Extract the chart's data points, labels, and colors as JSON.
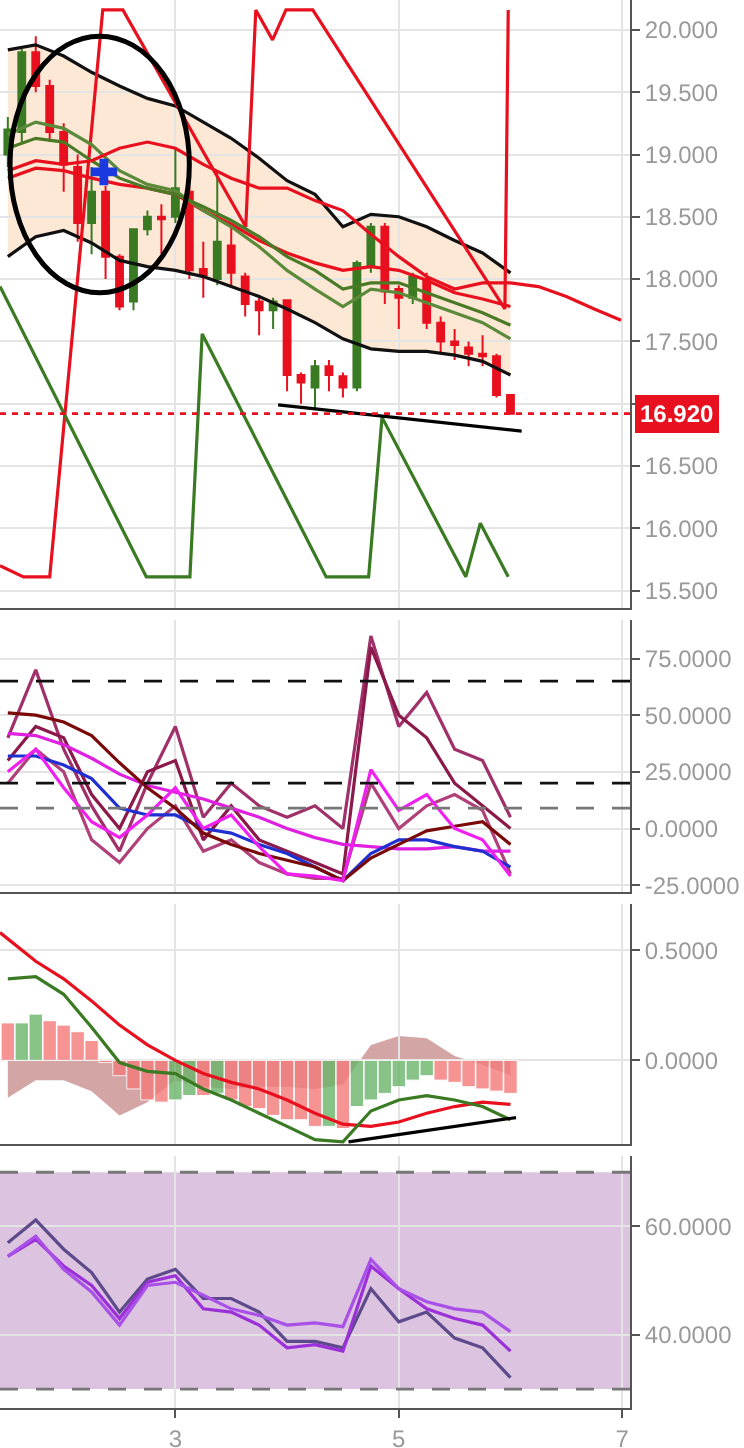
{
  "chart_data": [
    {
      "type": "candlestick",
      "x": [
        1.5,
        1.625,
        1.75,
        1.875,
        2.0,
        2.125,
        2.25,
        2.375,
        2.5,
        2.625,
        2.75,
        2.875,
        3.0,
        3.125,
        3.25,
        3.375,
        3.5,
        3.625,
        3.75,
        3.875,
        4.0,
        4.125,
        4.25,
        4.375,
        4.5,
        4.625,
        4.75,
        4.875,
        5.0,
        5.125,
        5.25,
        5.375,
        5.5,
        5.625,
        5.75,
        5.875,
        6.0
      ],
      "ohlc": [
        [
          19.0,
          19.3,
          18.9,
          19.2
        ],
        [
          19.18,
          19.85,
          19.1,
          19.82
        ],
        [
          19.82,
          19.95,
          19.5,
          19.55
        ],
        [
          19.55,
          19.6,
          19.1,
          19.18
        ],
        [
          19.18,
          19.25,
          18.7,
          18.92
        ],
        [
          18.9,
          19.0,
          18.3,
          18.45
        ],
        [
          18.45,
          18.9,
          18.2,
          18.7
        ],
        [
          18.7,
          18.75,
          18.0,
          18.18
        ],
        [
          18.18,
          18.2,
          17.75,
          17.78
        ],
        [
          17.82,
          18.4,
          17.75,
          18.4
        ],
        [
          18.4,
          18.55,
          18.35,
          18.5
        ],
        [
          18.5,
          18.6,
          18.2,
          18.48
        ],
        [
          18.5,
          19.05,
          18.45,
          18.73
        ],
        [
          18.7,
          18.75,
          18.0,
          18.07
        ],
        [
          18.08,
          18.3,
          17.85,
          18.03
        ],
        [
          18.0,
          18.85,
          17.95,
          18.3
        ],
        [
          18.27,
          18.45,
          17.95,
          18.05
        ],
        [
          18.02,
          18.05,
          17.7,
          17.8
        ],
        [
          17.82,
          17.85,
          17.55,
          17.75
        ],
        [
          17.75,
          17.85,
          17.6,
          17.82
        ],
        [
          17.83,
          17.83,
          17.1,
          17.23
        ],
        [
          17.23,
          17.25,
          17.0,
          17.17
        ],
        [
          17.13,
          17.35,
          16.95,
          17.3
        ],
        [
          17.3,
          17.35,
          17.1,
          17.23
        ],
        [
          17.22,
          17.25,
          17.05,
          17.13
        ],
        [
          17.13,
          18.15,
          17.1,
          18.13
        ],
        [
          18.1,
          18.45,
          18.05,
          18.42
        ],
        [
          18.42,
          18.45,
          17.8,
          17.9
        ],
        [
          17.92,
          17.95,
          17.6,
          17.85
        ],
        [
          17.85,
          18.05,
          17.8,
          18.02
        ],
        [
          18.0,
          18.05,
          17.6,
          17.65
        ],
        [
          17.65,
          17.7,
          17.4,
          17.5
        ],
        [
          17.5,
          17.6,
          17.35,
          17.47
        ],
        [
          17.45,
          17.5,
          17.3,
          17.4
        ],
        [
          17.4,
          17.55,
          17.3,
          17.38
        ],
        [
          17.38,
          17.4,
          17.05,
          17.07
        ],
        [
          17.07,
          17.07,
          16.92,
          16.92
        ]
      ],
      "series": [
        {
          "type": "line",
          "color": "#111111",
          "x": [
            1.5,
            1.75,
            2.0,
            2.25,
            2.5,
            2.75,
            3.0,
            3.25,
            3.5,
            3.75,
            4.0,
            4.25,
            4.5,
            4.75,
            5.0,
            5.25,
            5.5,
            5.75,
            6.0
          ],
          "values": [
            19.84,
            19.88,
            19.79,
            19.66,
            19.55,
            19.45,
            19.39,
            19.26,
            19.13,
            18.97,
            18.79,
            18.68,
            18.42,
            18.52,
            18.5,
            18.42,
            18.31,
            18.21,
            18.05
          ]
        },
        {
          "type": "line",
          "color": "#111111",
          "x": [
            1.5,
            1.75,
            2.0,
            2.25,
            2.5,
            2.75,
            3.0,
            3.25,
            3.5,
            3.75,
            4.0,
            4.25,
            4.5,
            4.75,
            5.0,
            5.25,
            5.5,
            5.75,
            6.0
          ],
          "values": [
            18.18,
            18.34,
            18.39,
            18.29,
            18.15,
            18.1,
            18.07,
            18.02,
            17.94,
            17.86,
            17.76,
            17.65,
            17.52,
            17.44,
            17.42,
            17.42,
            17.39,
            17.34,
            17.23
          ]
        },
        {
          "type": "line",
          "color": "#e8101e",
          "x": [
            1.43,
            1.64,
            1.875,
            2.35,
            2.53,
            3.63,
            3.72,
            3.87,
            3.99,
            4.23,
            5.95,
            5.98
          ],
          "values": [
            15.7,
            15.61,
            15.61,
            20.16,
            20.16,
            18.42,
            20.16,
            19.92,
            20.16,
            20.16,
            17.76,
            20.16
          ]
        },
        {
          "type": "line",
          "color": "#3a7a23",
          "x": [
            1.43,
            2.74,
            3.13,
            3.24,
            4.35,
            4.73,
            4.85,
            5.6,
            5.73,
            5.98
          ],
          "values": [
            17.94,
            15.61,
            15.61,
            17.56,
            15.61,
            15.61,
            16.89,
            15.61,
            16.04,
            15.61
          ]
        },
        {
          "type": "line",
          "color": "#e8101e",
          "x": [
            1.5,
            1.75,
            2.0,
            2.25,
            2.5,
            2.75,
            3.0,
            3.25,
            3.5,
            3.75,
            4.0,
            4.25,
            4.5,
            4.75,
            5.0,
            5.25,
            5.5,
            5.75,
            6.0
          ],
          "values": [
            18.81,
            18.89,
            18.87,
            18.81,
            18.76,
            18.73,
            18.68,
            18.55,
            18.44,
            18.31,
            18.21,
            18.13,
            18.07,
            18.1,
            18.07,
            17.99,
            17.89,
            17.84,
            17.78
          ]
        },
        {
          "type": "line",
          "color": "#5a8a3a",
          "x": [
            1.5,
            1.75,
            2.0,
            2.25,
            2.5,
            2.75,
            3.0,
            3.25,
            3.5,
            3.75,
            4.0,
            4.25,
            4.5,
            4.75,
            5.0,
            5.25,
            5.5,
            5.75,
            6.0
          ],
          "values": [
            19.16,
            19.26,
            19.21,
            19.08,
            18.87,
            18.76,
            18.71,
            18.55,
            18.42,
            18.26,
            18.07,
            17.92,
            17.78,
            17.92,
            17.89,
            17.81,
            17.73,
            17.65,
            17.52
          ]
        },
        {
          "type": "line",
          "color": "#4a7a25",
          "x": [
            1.5,
            1.75,
            2.0,
            2.25,
            2.5,
            2.75,
            3.0,
            3.25,
            3.5,
            3.75,
            4.0,
            4.25,
            4.5,
            4.75,
            5.0,
            5.25,
            5.5,
            5.75,
            6.0
          ],
          "values": [
            19.05,
            19.13,
            19.1,
            18.95,
            18.81,
            18.73,
            18.68,
            18.58,
            18.47,
            18.34,
            18.18,
            18.07,
            17.92,
            17.97,
            17.97,
            17.89,
            17.81,
            17.73,
            17.63
          ],
          "lower": [
            18.18,
            18.34,
            18.39,
            18.29,
            18.15,
            18.1,
            18.07,
            18.02,
            17.94,
            17.86,
            17.76,
            17.65,
            17.52,
            17.44,
            17.42,
            17.42,
            17.39,
            17.34,
            17.23
          ],
          "upper": [
            19.84,
            19.88,
            19.79,
            19.66,
            19.55,
            19.45,
            19.39,
            19.26,
            19.13,
            18.97,
            18.79,
            18.68,
            18.42,
            18.52,
            18.5,
            18.42,
            18.31,
            18.21,
            18.05
          ]
        },
        {
          "type": "line",
          "color": "#e8101e",
          "x": [
            1.5,
            1.75,
            2.0,
            2.25,
            2.5,
            2.75,
            3.0,
            3.25,
            3.5,
            3.75,
            4.0,
            4.25,
            4.5,
            4.75,
            5.0,
            5.25,
            5.5,
            5.75,
            6.0,
            6.25,
            6.5,
            6.75,
            6.99
          ],
          "values": [
            18.87,
            18.95,
            18.92,
            18.95,
            19.05,
            19.1,
            19.05,
            18.92,
            18.81,
            18.73,
            18.73,
            18.63,
            18.55,
            18.36,
            18.18,
            18.02,
            17.92,
            17.97,
            17.97,
            17.94,
            17.86,
            17.76,
            17.67
          ]
        },
        {
          "type": "line",
          "color": "#000000",
          "x": [
            3.92,
            6.1
          ],
          "values": [
            16.99,
            16.78
          ]
        },
        {
          "type": "scatter",
          "marker": "cross",
          "color": "#1a3ae0",
          "x": [
            2.36
          ],
          "values": [
            18.86
          ]
        }
      ],
      "xlim": [
        1.43,
        7.07
      ],
      "xticks": [
        3,
        5,
        7
      ],
      "ylim": [
        15.36,
        20.24
      ],
      "yticks": [
        {
          "value": 15.5,
          "label": "15.500"
        },
        {
          "value": 16,
          "label": "16.000"
        },
        {
          "value": 16.5,
          "label": "16.500"
        },
        {
          "value": 17,
          "label": null
        },
        {
          "value": 17.5,
          "label": "17.500"
        },
        {
          "value": 18,
          "label": "18.000"
        },
        {
          "value": 18.5,
          "label": "18.500"
        },
        {
          "value": 19,
          "label": "19.000"
        },
        {
          "value": 19.5,
          "label": "19.500"
        },
        {
          "value": 20,
          "label": "20.000"
        }
      ],
      "ref_lines": [
        {
          "axis": "y",
          "value": 16.92,
          "label": "16.920",
          "color": "#e8101e",
          "line_style": "dotted"
        }
      ],
      "grid": true,
      "tick_labels": "y"
    },
    {
      "type": "line",
      "x": [
        1.5,
        1.75,
        2.0,
        2.25,
        2.5,
        2.75,
        3.0,
        3.25,
        3.5,
        3.75,
        4.0,
        4.25,
        4.5,
        4.75,
        5.0,
        5.25,
        5.5,
        5.75,
        6.0
      ],
      "series": [
        {
          "color": "#a0306a",
          "values": [
            40,
            70,
            35,
            10,
            -10,
            20,
            45,
            5,
            20,
            10,
            5,
            10,
            0,
            85,
            45,
            60,
            35,
            30,
            5
          ]
        },
        {
          "color": "#8b1a4a",
          "values": [
            30,
            45,
            40,
            15,
            0,
            25,
            30,
            -5,
            10,
            -5,
            -10,
            -15,
            -20,
            80,
            50,
            40,
            20,
            10,
            0
          ]
        },
        {
          "color": "#b0407a",
          "values": [
            20,
            35,
            25,
            -5,
            -15,
            0,
            10,
            -10,
            -5,
            -15,
            -20,
            -22,
            -22,
            20,
            0,
            10,
            15,
            8,
            -20
          ]
        },
        {
          "color": "#e020e0",
          "values": [
            42,
            41,
            37,
            31,
            24,
            19,
            16,
            13,
            9,
            5,
            0,
            -4,
            -7,
            -8,
            -9,
            -9,
            -8,
            -10,
            -10
          ]
        },
        {
          "color": "#1f2fd0",
          "values": [
            32,
            32,
            28,
            22,
            9,
            6,
            6,
            0,
            -2,
            -7,
            -11,
            -17,
            -23,
            -11,
            -5,
            -5,
            -8,
            -10,
            -17
          ]
        },
        {
          "color": "#7a0a0a",
          "values": [
            51,
            50,
            47,
            41,
            29,
            18,
            9,
            -2,
            -7,
            -11,
            -14,
            -17,
            -23,
            -13,
            -7,
            -1,
            1,
            3,
            -7
          ]
        },
        {
          "color": "#f020f0",
          "values": [
            25,
            35,
            18,
            3,
            -4,
            6,
            18,
            0,
            6,
            -8,
            -20,
            -21,
            -23,
            26,
            8,
            15,
            0,
            -5,
            -21
          ]
        }
      ],
      "xlim": [
        1.43,
        7.07
      ],
      "xticks": [
        3,
        5,
        7
      ],
      "ylim": [
        -28,
        92
      ],
      "yticks": [
        {
          "value": -25,
          "label": "-25.0000"
        },
        {
          "value": 0,
          "label": "0.0000"
        },
        {
          "value": 25,
          "label": "25.0000"
        },
        {
          "value": 50,
          "label": "50.0000"
        },
        {
          "value": 75,
          "label": "75.0000"
        }
      ],
      "ref_lines": [
        {
          "axis": "y",
          "value": 65,
          "color": "#111111",
          "line_style": "dashed"
        },
        {
          "axis": "y",
          "value": 20,
          "color": "#111111",
          "line_style": "dashed"
        },
        {
          "axis": "y",
          "value": 9,
          "color": "#777777",
          "line_style": "dashed"
        }
      ],
      "grid": true,
      "tick_labels": "y"
    },
    {
      "type": "bar",
      "x": [
        1.5,
        1.625,
        1.75,
        1.875,
        2.0,
        2.125,
        2.25,
        2.375,
        2.5,
        2.625,
        2.75,
        2.875,
        3.0,
        3.125,
        3.25,
        3.375,
        3.5,
        3.625,
        3.75,
        3.875,
        4.0,
        4.125,
        4.25,
        4.375,
        4.5,
        4.625,
        4.75,
        4.875,
        5.0,
        5.125,
        5.25,
        5.375,
        5.5,
        5.625,
        5.75,
        5.875,
        6.0
      ],
      "series": [
        {
          "type": "area",
          "color": "#c98e8e",
          "x": [
            1.5,
            1.75,
            2.0,
            2.25,
            2.5,
            2.75,
            3.0,
            3.25,
            3.5,
            3.75,
            4.0,
            4.25,
            4.5,
            4.75,
            5.0,
            5.25,
            5.5,
            5.75,
            6.0
          ],
          "values": [
            -0.17,
            -0.09,
            -0.09,
            -0.14,
            -0.25,
            -0.19,
            -0.09,
            -0.12,
            -0.13,
            -0.12,
            -0.12,
            -0.13,
            -0.11,
            0.07,
            0.11,
            0.1,
            0.02,
            -0.02,
            -0.07
          ]
        },
        {
          "type": "bar",
          "values": [
            0.17,
            0.17,
            0.21,
            0.18,
            0.16,
            0.13,
            0.09,
            -0.01,
            -0.07,
            -0.13,
            -0.18,
            -0.19,
            -0.18,
            -0.16,
            -0.16,
            -0.15,
            -0.18,
            -0.21,
            -0.22,
            -0.25,
            -0.27,
            -0.27,
            -0.3,
            -0.3,
            -0.31,
            -0.21,
            -0.18,
            -0.15,
            -0.12,
            -0.09,
            -0.07,
            -0.09,
            -0.1,
            -0.12,
            -0.13,
            -0.14,
            -0.15
          ],
          "colors": [
            "#f47a7a",
            "#6ab46a",
            "#6ab46a",
            "#f47a7a",
            "#f47a7a",
            "#f47a7a",
            "#f47a7a",
            "#f47a7a",
            "#f47a7a",
            "#f47a7a",
            "#f47a7a",
            "#f47a7a",
            "#6ab46a",
            "#6ab46a",
            "#f47a7a",
            "#6ab46a",
            "#f47a7a",
            "#f47a7a",
            "#f47a7a",
            "#f47a7a",
            "#f47a7a",
            "#f47a7a",
            "#f47a7a",
            "#6ab46a",
            "#f47a7a",
            "#6ab46a",
            "#6ab46a",
            "#6ab46a",
            "#6ab46a",
            "#6ab46a",
            "#6ab46a",
            "#f47a7a",
            "#f47a7a",
            "#f47a7a",
            "#f47a7a",
            "#f47a7a",
            "#f47a7a"
          ]
        },
        {
          "type": "line",
          "color": "#e8101e",
          "x": [
            1.43,
            1.75,
            2.0,
            2.25,
            2.5,
            2.75,
            3.0,
            3.25,
            3.5,
            3.75,
            4.0,
            4.25,
            4.5,
            4.75,
            5.0,
            5.25,
            5.5,
            5.75,
            6.0
          ],
          "values": [
            0.58,
            0.45,
            0.37,
            0.27,
            0.16,
            0.07,
            0,
            -0.06,
            -0.1,
            -0.13,
            -0.18,
            -0.24,
            -0.29,
            -0.3,
            -0.28,
            -0.24,
            -0.21,
            -0.19,
            -0.2
          ]
        },
        {
          "type": "line",
          "color": "#3a7a23",
          "x": [
            1.5,
            1.75,
            2.0,
            2.25,
            2.5,
            2.75,
            3.0,
            3.25,
            3.5,
            3.75,
            4.0,
            4.25,
            4.5,
            4.75,
            5.0,
            5.25,
            5.5,
            5.75,
            6.0
          ],
          "values": [
            0.37,
            0.38,
            0.3,
            0.15,
            -0.01,
            -0.05,
            -0.06,
            -0.13,
            -0.18,
            -0.24,
            -0.3,
            -0.36,
            -0.37,
            -0.23,
            -0.18,
            -0.16,
            -0.18,
            -0.21,
            -0.27
          ]
        },
        {
          "type": "line",
          "color": "#000000",
          "x": [
            4.55,
            6.05
          ],
          "values": [
            -0.37,
            -0.26
          ]
        }
      ],
      "xlim": [
        1.43,
        7.07
      ],
      "xticks": [
        3,
        5,
        7
      ],
      "ylim": [
        -0.38,
        0.71
      ],
      "yticks": [
        {
          "value": 0,
          "label": "0.0000"
        },
        {
          "value": 0.5,
          "label": "0.5000"
        }
      ],
      "grid": true,
      "tick_labels": "y"
    },
    {
      "type": "line",
      "x": [
        1.5,
        1.75,
        2.0,
        2.25,
        2.5,
        2.75,
        3.0,
        3.25,
        3.5,
        3.75,
        4.0,
        4.25,
        4.5,
        4.75,
        5.0,
        5.25,
        5.5,
        5.75,
        6.0
      ],
      "series": [
        {
          "color": "#5c4a8a",
          "values": [
            57.0,
            61.2,
            55.8,
            51.5,
            44.2,
            50.3,
            52.1,
            46.7,
            46.7,
            44.2,
            38.8,
            38.8,
            37.6,
            48.5,
            42.4,
            44.2,
            39.4,
            37.6,
            32.1
          ]
        },
        {
          "color": "#9b30d9",
          "values": [
            54.5,
            57.6,
            52.7,
            49.1,
            43.0,
            49.7,
            50.9,
            44.8,
            44.2,
            41.8,
            37.6,
            38.2,
            37.0,
            52.7,
            48.5,
            44.8,
            43.0,
            41.8,
            37.0
          ]
        },
        {
          "color": "#a850e8",
          "values": [
            54.5,
            58.2,
            52.1,
            47.9,
            41.8,
            49.1,
            49.7,
            47.3,
            44.8,
            43.6,
            41.8,
            42.2,
            41.5,
            53.9,
            48.5,
            46.1,
            44.8,
            44.2,
            40.6
          ]
        }
      ],
      "xlim": [
        1.43,
        7.07
      ],
      "xticks": [
        3,
        5,
        7
      ],
      "ylim": [
        26.5,
        73
      ],
      "yticks": [
        {
          "value": 40,
          "label": "40.0000"
        },
        {
          "value": 60,
          "label": "60.0000"
        }
      ],
      "bands": [
        {
          "axis": "y",
          "from": 30,
          "to": 70,
          "color": "#dcc3e0"
        }
      ],
      "ref_lines": [
        {
          "axis": "y",
          "value": 70,
          "color": "#777777",
          "line_style": "dashed"
        },
        {
          "axis": "y",
          "value": 30,
          "color": "#777777",
          "line_style": "dashed"
        }
      ],
      "grid": true
    }
  ]
}
